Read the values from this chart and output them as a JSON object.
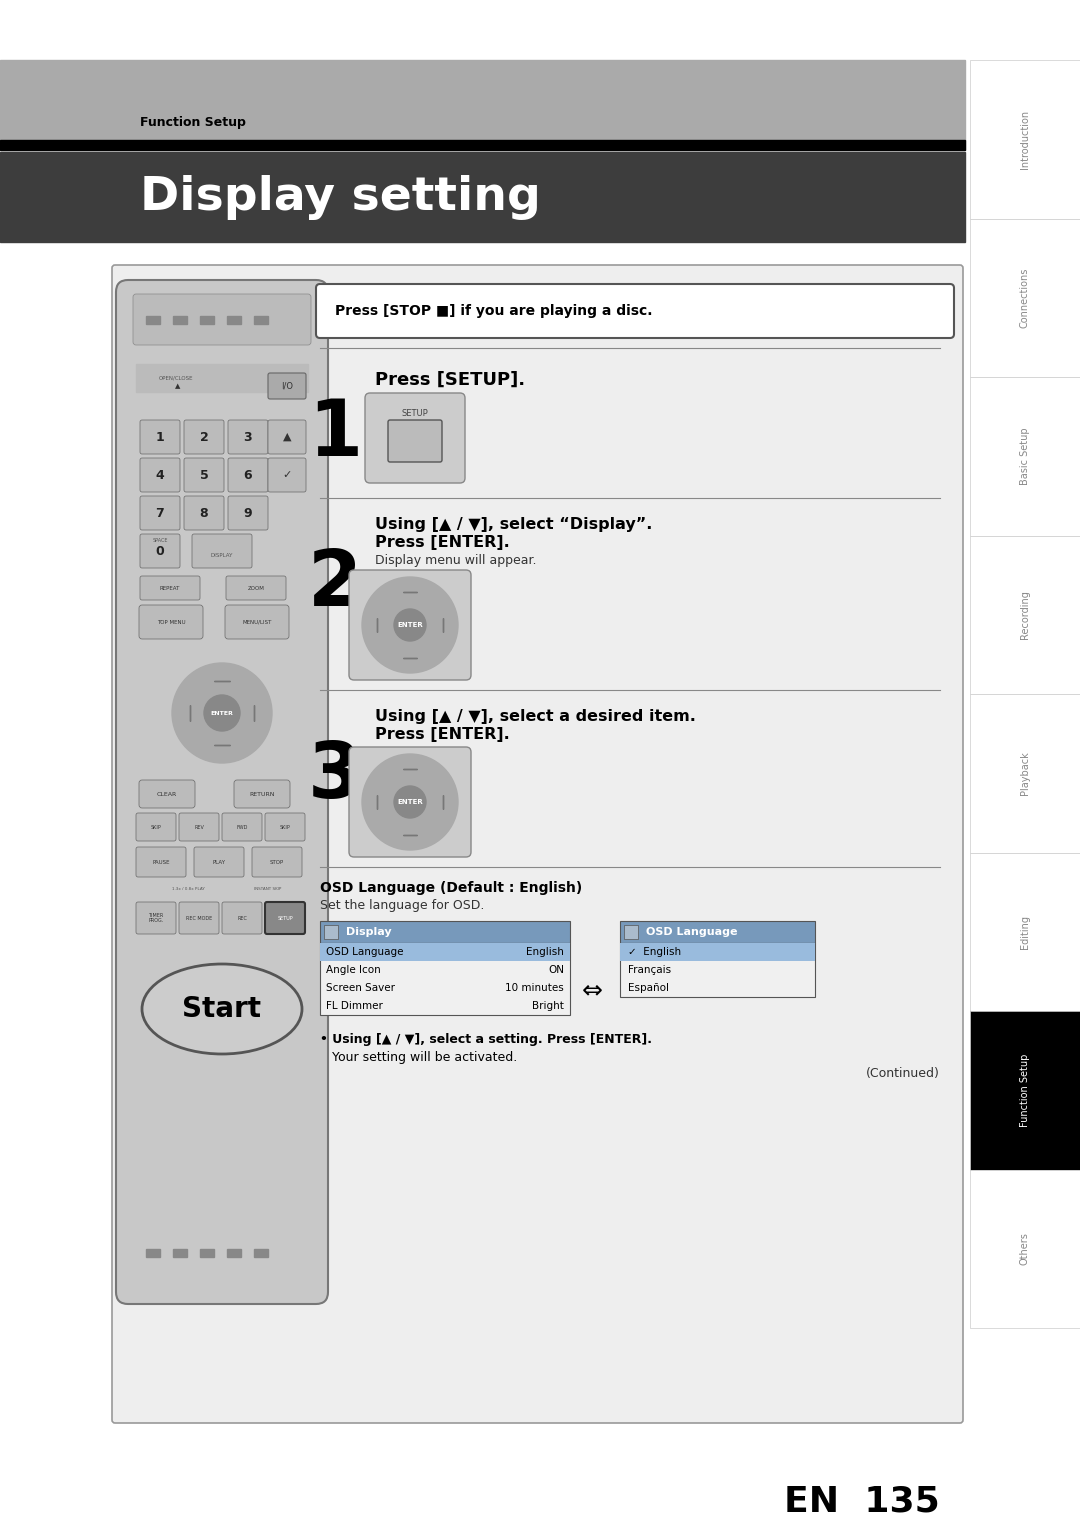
{
  "page_width": 10.8,
  "page_height": 15.28,
  "bg_color": "#ffffff",
  "top_bar_color": "#aaaaaa",
  "top_bar_text": "Function Setup",
  "title_bg_color": "#3d3d3d",
  "title_text": "Display setting",
  "title_color": "#ffffff",
  "content_bg_color": "#eeeeee",
  "stop_notice": "Press [STOP ■] if you are playing a disc.",
  "step1_title": "Press [SETUP].",
  "step2_line1": "Using [▲ / ▼], select “Display”.",
  "step2_line2": "Press [ENTER].",
  "step2_sub": "Display menu will appear.",
  "step3_line1": "Using [▲ / ▼], select a desired item.",
  "step3_line2": "Press [ENTER].",
  "osd_title": "OSD Language (Default : English)",
  "osd_sub": "Set the language for OSD.",
  "display_menu_title": "Display",
  "display_menu_items": [
    "OSD Language",
    "Angle Icon",
    "Screen Saver",
    "FL Dimmer"
  ],
  "display_menu_values": [
    "English",
    "ON",
    "10 minutes",
    "Bright"
  ],
  "osd_menu_title": "OSD Language",
  "osd_options": [
    "✓  English",
    "Français",
    "Español"
  ],
  "bullet_note": "• Using [▲ / ▼], select a setting. Press [ENTER].",
  "bullet_note2": "Your setting will be activated.",
  "continued": "(Continued)",
  "en_text": "EN  135",
  "sidebar_items": [
    "Introduction",
    "Connections",
    "Basic Setup",
    "Recording",
    "Playback",
    "Editing",
    "Function Setup",
    "Others"
  ],
  "sidebar_active": "Function Setup",
  "sidebar_active_bg": "#000000",
  "sidebar_active_fg": "#ffffff",
  "sidebar_inactive_bg": "#ffffff",
  "sidebar_inactive_fg": "#888888",
  "sidebar_border": "#cccccc"
}
